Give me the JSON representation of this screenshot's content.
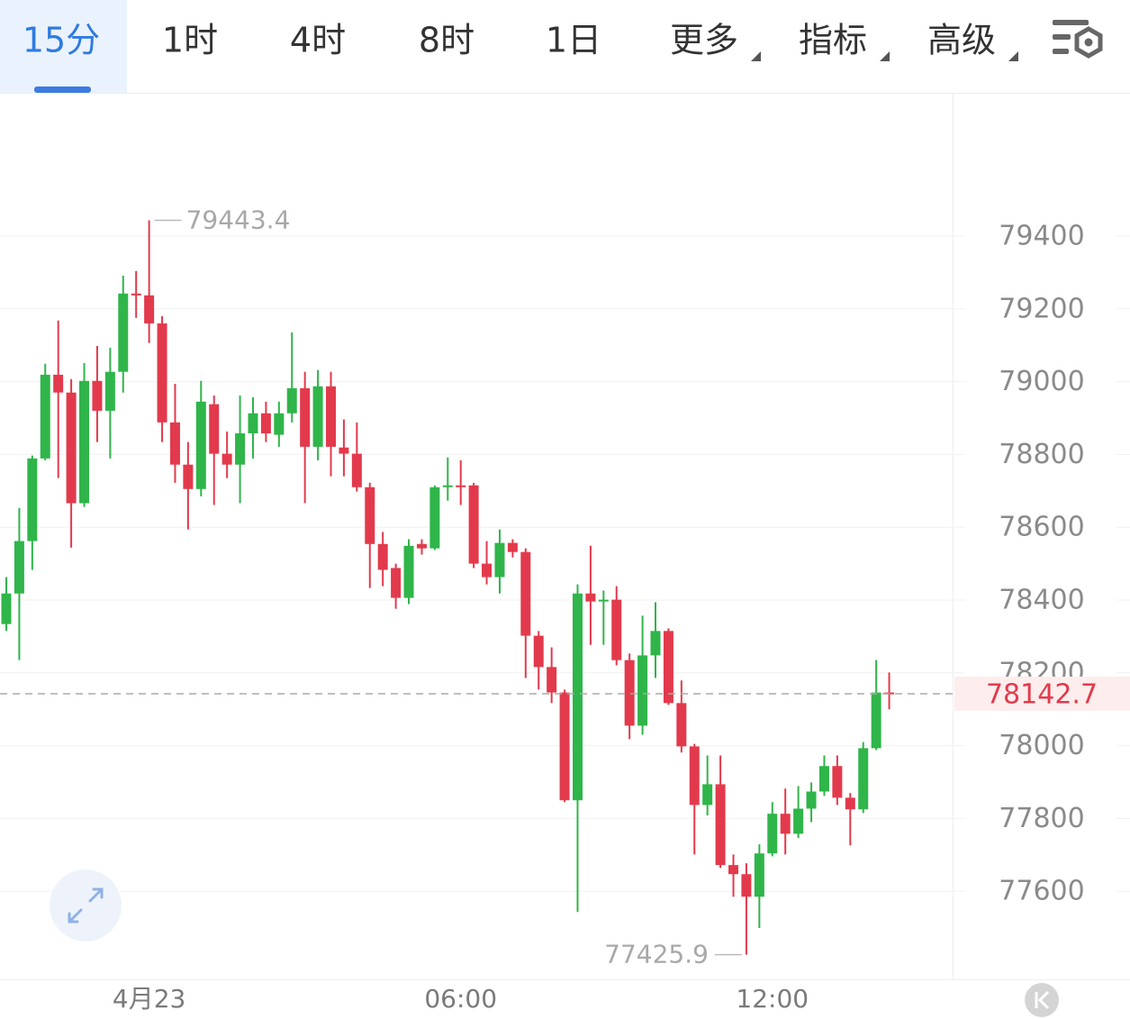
{
  "toolbar": {
    "tabs": [
      "15分",
      "1时",
      "4时",
      "8时",
      "1日",
      "更多",
      "指标",
      "高级"
    ]
  },
  "chart_data": {
    "type": "candlestick",
    "categories": [
      null,
      null,
      null,
      null,
      null,
      null,
      null,
      null,
      null,
      null,
      null,
      "4月23",
      null,
      null,
      null,
      null,
      null,
      null,
      null,
      null,
      null,
      null,
      null,
      null,
      null,
      null,
      null,
      null,
      null,
      null,
      null,
      null,
      null,
      null,
      null,
      "06:00",
      null,
      null,
      null,
      null,
      null,
      null,
      null,
      null,
      null,
      null,
      null,
      null,
      null,
      null,
      null,
      null,
      null,
      null,
      null,
      null,
      null,
      null,
      null,
      "12:00",
      null,
      null,
      null,
      null,
      null,
      null,
      null,
      null,
      null
    ],
    "open": [
      78334,
      78418,
      78562,
      78789,
      79019,
      78970,
      78666,
      79002,
      78920,
      79027,
      79242,
      79237,
      79160,
      78888,
      78772,
      78705,
      78938,
      78802,
      78772,
      78858,
      78913,
      78854,
      78913,
      78982,
      78821,
      78987,
      78819,
      78802,
      78710,
      78554,
      78488,
      78406,
      78554,
      78542,
      78710,
      78715,
      78715,
      78500,
      78463,
      78557,
      78532,
      78302,
      78216,
      78146,
      77850,
      78418,
      78396,
      78401,
      78235,
      78055,
      78248,
      78315,
      78117,
      77998,
      77837,
      77894,
      77672,
      77647,
      77585,
      77704,
      77813,
      77758,
      77827,
      77874,
      77944,
      77857,
      77825,
      77993,
      78146
    ],
    "high": [
      78463,
      78653,
      78797,
      79049,
      79168,
      79007,
      79051,
      79098,
      79093,
      79291,
      79304,
      79443.4,
      79180,
      78994,
      78834,
      79002,
      78962,
      78863,
      78962,
      78957,
      78945,
      78945,
      79135,
      79027,
      79032,
      79027,
      78896,
      78888,
      78722,
      78587,
      78500,
      78567,
      78567,
      78715,
      78792,
      78784,
      78722,
      78562,
      78594,
      78567,
      78542,
      78315,
      78270,
      78154,
      78443,
      78549,
      78426,
      78438,
      78253,
      78357,
      78394,
      78322,
      78179,
      78005,
      77973,
      77973,
      77701,
      77677,
      77729,
      77845,
      77882,
      77889,
      77899,
      77973,
      77973,
      77870,
      78010,
      78235,
      78201
    ],
    "low": [
      78315,
      78235,
      78483,
      78784,
      78735,
      78544,
      78656,
      78834,
      78789,
      78970,
      79175,
      79106,
      78834,
      78722,
      78594,
      78685,
      78661,
      78735,
      78666,
      78789,
      78834,
      78821,
      78888,
      78666,
      78784,
      78740,
      78740,
      78698,
      78433,
      78438,
      78376,
      78389,
      78525,
      78537,
      78673,
      78661,
      78488,
      78443,
      78418,
      78517,
      78186,
      78154,
      78117,
      77845,
      77543,
      78277,
      78277,
      78221,
      78018,
      78030,
      78186,
      78112,
      77981,
      77701,
      77808,
      77664,
      77585,
      77425.9,
      77499,
      77696,
      77701,
      77746,
      77790,
      77862,
      77837,
      77726,
      77815,
      77988,
      78100
    ],
    "close": [
      78418,
      78562,
      78789,
      79019,
      78970,
      78666,
      79002,
      78920,
      79027,
      79242,
      79237,
      79160,
      78888,
      78772,
      78705,
      78945,
      78802,
      78772,
      78858,
      78913,
      78858,
      78913,
      78982,
      78821,
      78987,
      78821,
      78802,
      78710,
      78554,
      78483,
      78406,
      78549,
      78542,
      78710,
      78715,
      78710,
      78500,
      78463,
      78557,
      78532,
      78302,
      78216,
      78146,
      77850,
      78418,
      78396,
      78401,
      78235,
      78055,
      78248,
      78315,
      78117,
      77998,
      77837,
      77894,
      77672,
      77647,
      77585,
      77704,
      77813,
      77758,
      77827,
      77874,
      77944,
      77857,
      77825,
      77993,
      78146,
      78142.7
    ],
    "up_color": "#2fb54a",
    "down_color": "#e23a4c",
    "ylim": [
      77358,
      79791
    ],
    "yticks": [
      77600,
      77800,
      78000,
      78200,
      78400,
      78600,
      78800,
      79000,
      79200,
      79400
    ],
    "grid": true
  }
}
